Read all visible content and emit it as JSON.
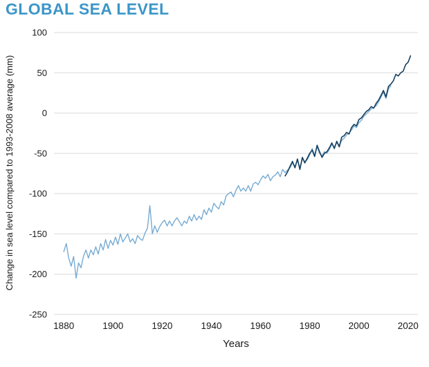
{
  "title": "GLOBAL SEA LEVEL",
  "colors": {
    "title": "#3c96c8",
    "light_line": "#76abd3",
    "dark_line": "#153f5e",
    "grid": "#d9d9d9",
    "text": "#1a1a1a",
    "background": "#ffffff"
  },
  "chart_data": {
    "type": "line",
    "title": "GLOBAL SEA LEVEL",
    "xlabel": "Years",
    "ylabel": "Change in sea level compared to 1993-2008 average (mm)",
    "xlim": [
      1876,
      2024
    ],
    "ylim": [
      -250,
      100
    ],
    "xticks": [
      1880,
      1900,
      1920,
      1940,
      1960,
      1980,
      2000,
      2020
    ],
    "yticks": [
      100,
      50,
      0,
      -50,
      -100,
      -150,
      -200,
      -250
    ],
    "grid": "horizontal",
    "legend": "none",
    "series": [
      {
        "name": "light_blue",
        "color": "#76abd3",
        "width": 1.4,
        "points": [
          [
            1880,
            -172
          ],
          [
            1881,
            -162
          ],
          [
            1882,
            -180
          ],
          [
            1883,
            -190
          ],
          [
            1884,
            -178
          ],
          [
            1885,
            -205
          ],
          [
            1886,
            -186
          ],
          [
            1887,
            -192
          ],
          [
            1888,
            -178
          ],
          [
            1889,
            -170
          ],
          [
            1890,
            -180
          ],
          [
            1891,
            -170
          ],
          [
            1892,
            -176
          ],
          [
            1893,
            -166
          ],
          [
            1894,
            -175
          ],
          [
            1895,
            -162
          ],
          [
            1896,
            -170
          ],
          [
            1897,
            -157
          ],
          [
            1898,
            -168
          ],
          [
            1899,
            -158
          ],
          [
            1900,
            -164
          ],
          [
            1901,
            -154
          ],
          [
            1902,
            -163
          ],
          [
            1903,
            -150
          ],
          [
            1904,
            -160
          ],
          [
            1905,
            -155
          ],
          [
            1906,
            -150
          ],
          [
            1907,
            -160
          ],
          [
            1908,
            -156
          ],
          [
            1909,
            -162
          ],
          [
            1910,
            -152
          ],
          [
            1911,
            -156
          ],
          [
            1912,
            -158
          ],
          [
            1913,
            -149
          ],
          [
            1914,
            -143
          ],
          [
            1915,
            -115
          ],
          [
            1916,
            -150
          ],
          [
            1917,
            -140
          ],
          [
            1918,
            -148
          ],
          [
            1919,
            -141
          ],
          [
            1920,
            -136
          ],
          [
            1921,
            -133
          ],
          [
            1922,
            -140
          ],
          [
            1923,
            -134
          ],
          [
            1924,
            -140
          ],
          [
            1925,
            -134
          ],
          [
            1926,
            -130
          ],
          [
            1927,
            -135
          ],
          [
            1928,
            -140
          ],
          [
            1929,
            -134
          ],
          [
            1930,
            -137
          ],
          [
            1931,
            -128
          ],
          [
            1932,
            -134
          ],
          [
            1933,
            -126
          ],
          [
            1934,
            -133
          ],
          [
            1935,
            -128
          ],
          [
            1936,
            -132
          ],
          [
            1937,
            -120
          ],
          [
            1938,
            -126
          ],
          [
            1939,
            -118
          ],
          [
            1940,
            -123
          ],
          [
            1941,
            -112
          ],
          [
            1942,
            -116
          ],
          [
            1943,
            -119
          ],
          [
            1944,
            -110
          ],
          [
            1945,
            -114
          ],
          [
            1946,
            -103
          ],
          [
            1947,
            -100
          ],
          [
            1948,
            -98
          ],
          [
            1949,
            -104
          ],
          [
            1950,
            -96
          ],
          [
            1951,
            -90
          ],
          [
            1952,
            -97
          ],
          [
            1953,
            -93
          ],
          [
            1954,
            -97
          ],
          [
            1955,
            -90
          ],
          [
            1956,
            -97
          ],
          [
            1957,
            -88
          ],
          [
            1958,
            -86
          ],
          [
            1959,
            -89
          ],
          [
            1960,
            -83
          ],
          [
            1961,
            -78
          ],
          [
            1962,
            -81
          ],
          [
            1963,
            -76
          ],
          [
            1964,
            -84
          ],
          [
            1965,
            -79
          ],
          [
            1966,
            -77
          ],
          [
            1967,
            -73
          ],
          [
            1968,
            -79
          ],
          [
            1969,
            -70
          ],
          [
            1970,
            -74
          ],
          [
            1971,
            -71
          ],
          [
            1972,
            -68
          ],
          [
            1973,
            -62
          ],
          [
            1974,
            -66
          ],
          [
            1975,
            -59
          ],
          [
            1976,
            -68
          ],
          [
            1977,
            -57
          ],
          [
            1978,
            -60
          ],
          [
            1979,
            -58
          ],
          [
            1980,
            -52
          ],
          [
            1981,
            -44
          ],
          [
            1982,
            -52
          ],
          [
            1983,
            -42
          ],
          [
            1984,
            -50
          ],
          [
            1985,
            -53
          ],
          [
            1986,
            -48
          ],
          [
            1987,
            -50
          ],
          [
            1988,
            -45
          ],
          [
            1989,
            -39
          ],
          [
            1990,
            -42
          ],
          [
            1991,
            -37
          ],
          [
            1992,
            -40
          ],
          [
            1993,
            -34
          ],
          [
            1994,
            -31
          ],
          [
            1995,
            -27
          ],
          [
            1996,
            -25
          ],
          [
            1997,
            -21
          ],
          [
            1998,
            -16
          ],
          [
            1999,
            -18
          ],
          [
            2000,
            -12
          ],
          [
            2001,
            -9
          ],
          [
            2002,
            -4
          ],
          [
            2003,
            -1
          ],
          [
            2004,
            2
          ],
          [
            2005,
            5
          ],
          [
            2006,
            7
          ],
          [
            2007,
            9
          ],
          [
            2008,
            14
          ],
          [
            2009,
            20
          ],
          [
            2010,
            26
          ],
          [
            2011,
            18
          ],
          [
            2012,
            30
          ],
          [
            2013,
            34
          ]
        ]
      },
      {
        "name": "dark_blue",
        "color": "#153f5e",
        "width": 1.6,
        "points": [
          [
            1970,
            -78
          ],
          [
            1971,
            -73
          ],
          [
            1972,
            -66
          ],
          [
            1973,
            -60
          ],
          [
            1974,
            -68
          ],
          [
            1975,
            -57
          ],
          [
            1976,
            -70
          ],
          [
            1977,
            -55
          ],
          [
            1978,
            -62
          ],
          [
            1979,
            -56
          ],
          [
            1980,
            -50
          ],
          [
            1981,
            -46
          ],
          [
            1982,
            -54
          ],
          [
            1983,
            -40
          ],
          [
            1984,
            -48
          ],
          [
            1985,
            -55
          ],
          [
            1986,
            -50
          ],
          [
            1987,
            -48
          ],
          [
            1988,
            -43
          ],
          [
            1989,
            -37
          ],
          [
            1990,
            -44
          ],
          [
            1991,
            -35
          ],
          [
            1992,
            -42
          ],
          [
            1993,
            -30
          ],
          [
            1994,
            -28
          ],
          [
            1995,
            -24
          ],
          [
            1996,
            -26
          ],
          [
            1997,
            -18
          ],
          [
            1998,
            -14
          ],
          [
            1999,
            -16
          ],
          [
            2000,
            -8
          ],
          [
            2001,
            -6
          ],
          [
            2002,
            -2
          ],
          [
            2003,
            2
          ],
          [
            2004,
            4
          ],
          [
            2005,
            8
          ],
          [
            2006,
            6
          ],
          [
            2007,
            12
          ],
          [
            2008,
            16
          ],
          [
            2009,
            22
          ],
          [
            2010,
            28
          ],
          [
            2011,
            20
          ],
          [
            2012,
            33
          ],
          [
            2013,
            36
          ],
          [
            2014,
            40
          ],
          [
            2015,
            48
          ],
          [
            2016,
            46
          ],
          [
            2017,
            50
          ],
          [
            2018,
            52
          ],
          [
            2019,
            60
          ],
          [
            2020,
            63
          ],
          [
            2021,
            71
          ]
        ]
      }
    ]
  }
}
